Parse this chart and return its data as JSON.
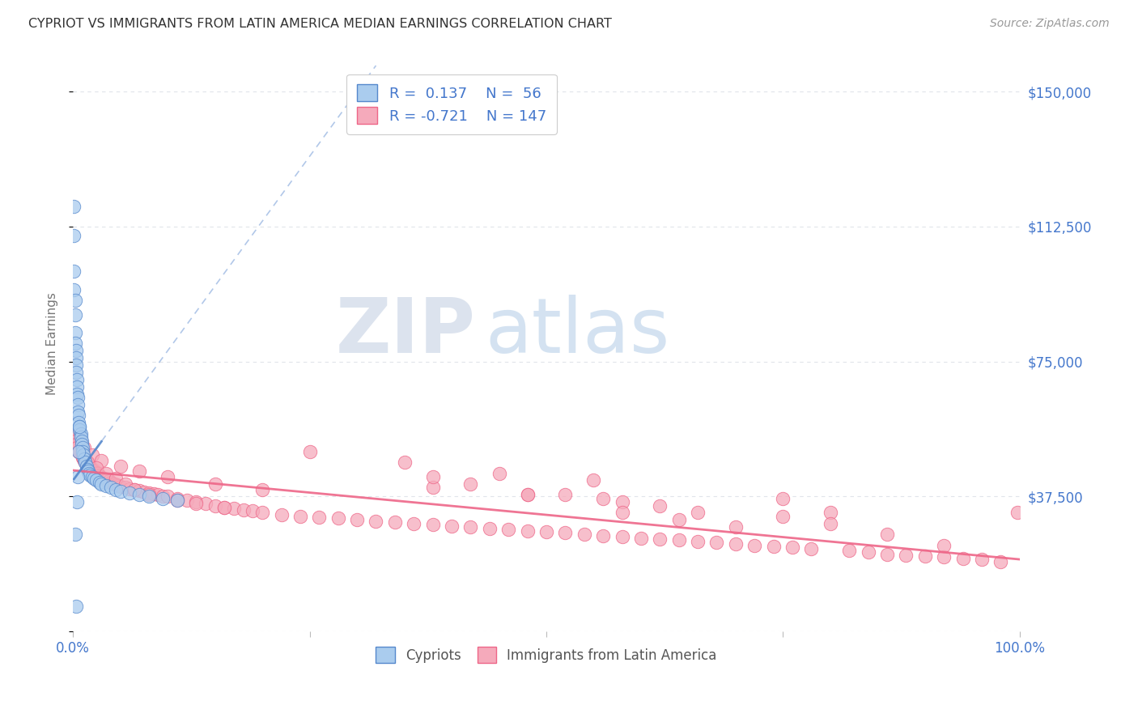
{
  "title": "CYPRIOT VS IMMIGRANTS FROM LATIN AMERICA MEDIAN EARNINGS CORRELATION CHART",
  "source": "Source: ZipAtlas.com",
  "ylabel": "Median Earnings",
  "yticks": [
    0,
    37500,
    75000,
    112500,
    150000
  ],
  "ytick_labels_right": [
    "",
    "$37,500",
    "$75,000",
    "$112,500",
    "$150,000"
  ],
  "ylim": [
    0,
    160000
  ],
  "xlim": [
    0,
    1.0
  ],
  "color_cypriot": "#aaccee",
  "color_latin": "#f5aabb",
  "color_cypriot_edge": "#5588cc",
  "color_latin_edge": "#ee6688",
  "color_cypriot_line": "#88aadd",
  "color_latin_line": "#ee6688",
  "color_axis_labels": "#4477cc",
  "watermark_zip_color": "#c8d4e8",
  "watermark_atlas_color": "#a8c8e8",
  "background_color": "#ffffff",
  "grid_color": "#e0e4ea",
  "cypriot_x": [
    0.001,
    0.001,
    0.001,
    0.001,
    0.002,
    0.002,
    0.002,
    0.002,
    0.003,
    0.003,
    0.003,
    0.003,
    0.004,
    0.004,
    0.004,
    0.005,
    0.005,
    0.005,
    0.006,
    0.006,
    0.007,
    0.007,
    0.008,
    0.008,
    0.009,
    0.009,
    0.01,
    0.01,
    0.011,
    0.012,
    0.013,
    0.014,
    0.015,
    0.016,
    0.017,
    0.018,
    0.02,
    0.022,
    0.025,
    0.028,
    0.03,
    0.035,
    0.04,
    0.045,
    0.05,
    0.06,
    0.07,
    0.08,
    0.095,
    0.11,
    0.002,
    0.003,
    0.004,
    0.005,
    0.006,
    0.007
  ],
  "cypriot_y": [
    118000,
    110000,
    100000,
    95000,
    92000,
    88000,
    83000,
    80000,
    78000,
    76000,
    74000,
    72000,
    70000,
    68000,
    66000,
    65000,
    63000,
    61000,
    60000,
    58000,
    57000,
    56000,
    55000,
    54000,
    53000,
    52000,
    51000,
    50000,
    49000,
    48000,
    47000,
    46000,
    45000,
    44500,
    44000,
    43500,
    43000,
    42500,
    42000,
    41500,
    41000,
    40500,
    40000,
    39500,
    39000,
    38500,
    38000,
    37500,
    37000,
    36500,
    27000,
    7000,
    36000,
    43000,
    50000,
    57000
  ],
  "latin_x": [
    0.001,
    0.002,
    0.003,
    0.004,
    0.005,
    0.006,
    0.007,
    0.008,
    0.009,
    0.01,
    0.011,
    0.012,
    0.013,
    0.014,
    0.015,
    0.016,
    0.017,
    0.018,
    0.019,
    0.02,
    0.021,
    0.022,
    0.023,
    0.024,
    0.025,
    0.026,
    0.027,
    0.028,
    0.029,
    0.03,
    0.032,
    0.034,
    0.036,
    0.038,
    0.04,
    0.042,
    0.044,
    0.046,
    0.048,
    0.05,
    0.055,
    0.06,
    0.065,
    0.07,
    0.075,
    0.08,
    0.085,
    0.09,
    0.095,
    0.1,
    0.11,
    0.12,
    0.13,
    0.14,
    0.15,
    0.16,
    0.17,
    0.18,
    0.19,
    0.2,
    0.22,
    0.24,
    0.26,
    0.28,
    0.3,
    0.32,
    0.34,
    0.36,
    0.38,
    0.4,
    0.42,
    0.44,
    0.46,
    0.48,
    0.5,
    0.52,
    0.54,
    0.56,
    0.58,
    0.6,
    0.62,
    0.64,
    0.66,
    0.68,
    0.7,
    0.72,
    0.74,
    0.76,
    0.78,
    0.8,
    0.82,
    0.84,
    0.86,
    0.88,
    0.9,
    0.92,
    0.94,
    0.96,
    0.98,
    0.998,
    0.005,
    0.008,
    0.012,
    0.02,
    0.03,
    0.05,
    0.07,
    0.1,
    0.15,
    0.2,
    0.002,
    0.003,
    0.004,
    0.006,
    0.01,
    0.015,
    0.025,
    0.035,
    0.045,
    0.055,
    0.065,
    0.08,
    0.11,
    0.13,
    0.16,
    0.25,
    0.35,
    0.45,
    0.55,
    0.38,
    0.48,
    0.58,
    0.48,
    0.42,
    0.38,
    0.56,
    0.62,
    0.52,
    0.66,
    0.75,
    0.8,
    0.86,
    0.75,
    0.92,
    0.58,
    0.64,
    0.7
  ],
  "latin_y": [
    54000,
    53000,
    52000,
    51500,
    51000,
    50500,
    50000,
    49500,
    49000,
    48500,
    48000,
    47500,
    47000,
    46800,
    46500,
    46200,
    46000,
    45800,
    45500,
    45200,
    45000,
    44800,
    44500,
    44200,
    44000,
    43800,
    43500,
    43200,
    43000,
    42800,
    42500,
    42200,
    42000,
    41800,
    41500,
    41200,
    41000,
    40800,
    40500,
    40200,
    40000,
    39700,
    39400,
    39100,
    38800,
    38500,
    38200,
    38000,
    37700,
    37500,
    37000,
    36500,
    36000,
    35500,
    35000,
    34500,
    34200,
    33800,
    33500,
    33000,
    32500,
    32000,
    31800,
    31500,
    31000,
    30700,
    30400,
    30000,
    29700,
    29400,
    29000,
    28700,
    28400,
    28000,
    27700,
    27400,
    27000,
    26700,
    26400,
    26000,
    25700,
    25400,
    25000,
    24700,
    24400,
    24000,
    23700,
    23400,
    23000,
    33000,
    22500,
    22000,
    21500,
    21200,
    21000,
    20700,
    20400,
    20000,
    19500,
    33000,
    55000,
    53000,
    51000,
    49000,
    47500,
    46000,
    44500,
    43000,
    41000,
    39500,
    53000,
    52000,
    51000,
    50000,
    48500,
    47000,
    45500,
    44000,
    42500,
    41000,
    39500,
    38000,
    36500,
    35500,
    34500,
    50000,
    47000,
    44000,
    42000,
    40000,
    38000,
    36000,
    38000,
    41000,
    43000,
    37000,
    35000,
    38000,
    33000,
    32000,
    30000,
    27000,
    37000,
    24000,
    33000,
    31000,
    29000
  ]
}
